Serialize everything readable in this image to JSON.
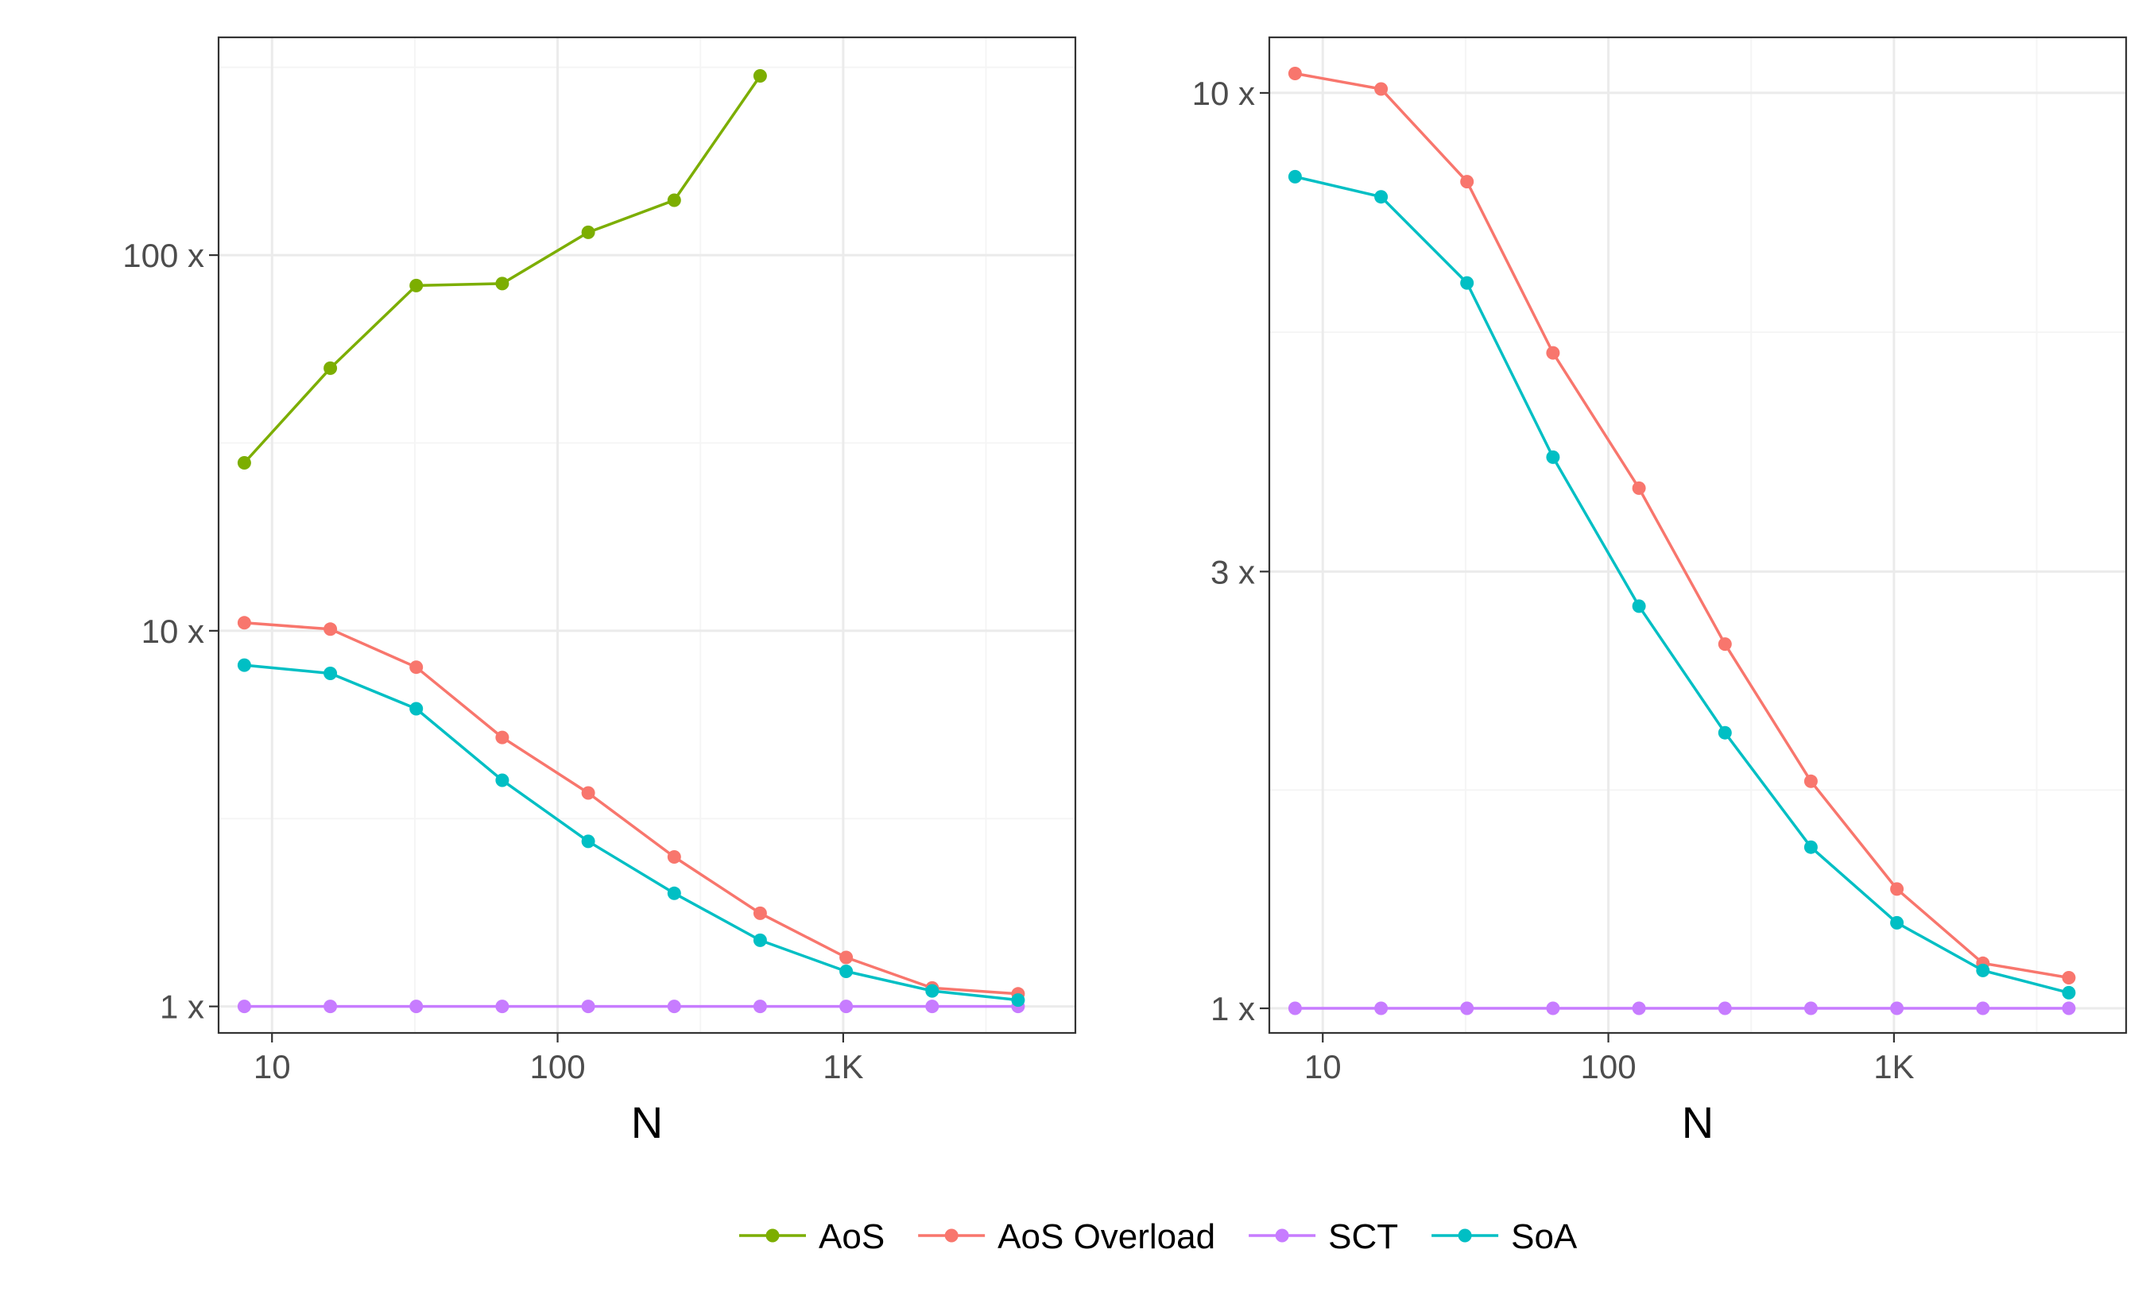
{
  "chart_data": [
    {
      "type": "line",
      "xlabel": "N",
      "ylabel": "",
      "x_scale": "log",
      "y_scale": "log",
      "xlim": [
        6.5,
        6500
      ],
      "ylim": [
        0.85,
        380
      ],
      "grid": true,
      "x_ticks": [
        {
          "value": 10,
          "label": "10"
        },
        {
          "value": 100,
          "label": "100"
        },
        {
          "value": 1000,
          "label": "1K"
        }
      ],
      "y_ticks": [
        {
          "value": 1,
          "label": "1 x"
        },
        {
          "value": 10,
          "label": "10 x"
        },
        {
          "value": 100,
          "label": "100 x"
        }
      ],
      "x": [
        8,
        16,
        32,
        64,
        128,
        256,
        512,
        1024,
        2048,
        4096
      ],
      "series": [
        {
          "name": "AoS",
          "color": "#7CAE00",
          "values": [
            28,
            50,
            83,
            84,
            115,
            140,
            300,
            null,
            null,
            null
          ]
        },
        {
          "name": "AoS Overload",
          "color": "#F8766D",
          "values": [
            10.5,
            10.1,
            8.0,
            5.2,
            3.7,
            2.5,
            1.77,
            1.35,
            1.12,
            1.08
          ]
        },
        {
          "name": "SCT",
          "color": "#C77CFF",
          "values": [
            1,
            1,
            1,
            1,
            1,
            1,
            1,
            1,
            1,
            1
          ]
        },
        {
          "name": "SoA",
          "color": "#00BFC4",
          "values": [
            8.1,
            7.7,
            6.2,
            4.0,
            2.75,
            2.0,
            1.5,
            1.24,
            1.1,
            1.04
          ]
        }
      ]
    },
    {
      "type": "line",
      "xlabel": "N",
      "ylabel": "",
      "x_scale": "log",
      "y_scale": "log",
      "xlim": [
        6.5,
        6500
      ],
      "ylim": [
        0.94,
        11.5
      ],
      "grid": true,
      "x_ticks": [
        {
          "value": 10,
          "label": "10"
        },
        {
          "value": 100,
          "label": "100"
        },
        {
          "value": 1000,
          "label": "1K"
        }
      ],
      "y_ticks": [
        {
          "value": 1,
          "label": "1 x"
        },
        {
          "value": 3,
          "label": "3 x"
        },
        {
          "value": 10,
          "label": "10 x"
        }
      ],
      "x": [
        8,
        16,
        32,
        64,
        128,
        256,
        512,
        1024,
        2048,
        4096
      ],
      "series": [
        {
          "name": "AoS Overload",
          "color": "#F8766D",
          "values": [
            10.5,
            10.1,
            8.0,
            5.2,
            3.7,
            2.5,
            1.77,
            1.35,
            1.12,
            1.08
          ]
        },
        {
          "name": "SCT",
          "color": "#C77CFF",
          "values": [
            1,
            1,
            1,
            1,
            1,
            1,
            1,
            1,
            1,
            1
          ]
        },
        {
          "name": "SoA",
          "color": "#00BFC4",
          "values": [
            8.1,
            7.7,
            6.2,
            4.0,
            2.75,
            2.0,
            1.5,
            1.24,
            1.1,
            1.04
          ]
        }
      ]
    }
  ],
  "legend": {
    "position": "bottom",
    "items": [
      {
        "label": "AoS",
        "color": "#7CAE00"
      },
      {
        "label": "AoS Overload",
        "color": "#F8766D"
      },
      {
        "label": "SCT",
        "color": "#C77CFF"
      },
      {
        "label": "SoA",
        "color": "#00BFC4"
      }
    ]
  },
  "colors": {
    "grid_major": "#ebebeb",
    "grid_minor": "#f5f5f5",
    "panel_border": "#333333",
    "tick": "#333333"
  }
}
